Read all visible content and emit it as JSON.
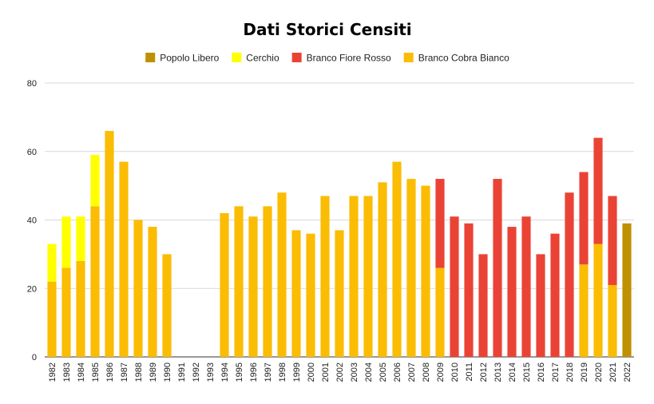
{
  "chart_data": {
    "type": "bar",
    "stacked": true,
    "title": "Dati Storici Censiti",
    "xlabel": "",
    "ylabel": "",
    "ylim": [
      0,
      80
    ],
    "yticks": [
      0,
      20,
      40,
      60,
      80
    ],
    "grid": true,
    "legend_position": "top",
    "categories": [
      "1982",
      "1983",
      "1984",
      "1985",
      "1986",
      "1987",
      "1988",
      "1989",
      "1990",
      "1991",
      "1992",
      "1993",
      "1994",
      "1995",
      "1996",
      "1997",
      "1998",
      "1999",
      "2000",
      "2001",
      "2002",
      "2003",
      "2004",
      "2005",
      "2006",
      "2007",
      "2008",
      "2009",
      "2010",
      "2011",
      "2012",
      "2013",
      "2014",
      "2015",
      "2016",
      "2017",
      "2018",
      "2019",
      "2020",
      "2021",
      "2022"
    ],
    "series": [
      {
        "name": "Branco Cobra Bianco",
        "color": "#fbbc04",
        "values": [
          22,
          26,
          28,
          44,
          66,
          57,
          40,
          38,
          30,
          0,
          0,
          0,
          42,
          44,
          41,
          44,
          48,
          37,
          36,
          47,
          37,
          47,
          47,
          51,
          57,
          52,
          50,
          26,
          0,
          0,
          0,
          0,
          0,
          0,
          0,
          0,
          0,
          27,
          33,
          21,
          0
        ]
      },
      {
        "name": "Cerchio",
        "color": "#ffff00",
        "values": [
          11,
          15,
          13,
          15,
          0,
          0,
          0,
          0,
          0,
          0,
          0,
          0,
          0,
          0,
          0,
          0,
          0,
          0,
          0,
          0,
          0,
          0,
          0,
          0,
          0,
          0,
          0,
          0,
          0,
          0,
          0,
          0,
          0,
          0,
          0,
          0,
          0,
          0,
          0,
          0,
          0
        ]
      },
      {
        "name": "Branco Fiore Rosso",
        "color": "#ea4335",
        "values": [
          0,
          0,
          0,
          0,
          0,
          0,
          0,
          0,
          0,
          0,
          0,
          0,
          0,
          0,
          0,
          0,
          0,
          0,
          0,
          0,
          0,
          0,
          0,
          0,
          0,
          0,
          0,
          26,
          41,
          39,
          30,
          52,
          38,
          41,
          30,
          36,
          48,
          27,
          31,
          26,
          0
        ]
      },
      {
        "name": "Popolo Libero",
        "color": "#bf9000",
        "values": [
          0,
          0,
          0,
          0,
          0,
          0,
          0,
          0,
          0,
          0,
          0,
          0,
          0,
          0,
          0,
          0,
          0,
          0,
          0,
          0,
          0,
          0,
          0,
          0,
          0,
          0,
          0,
          0,
          0,
          0,
          0,
          0,
          0,
          0,
          0,
          0,
          0,
          0,
          0,
          0,
          39
        ]
      }
    ],
    "legend_order": [
      "Popolo Libero",
      "Cerchio",
      "Branco Fiore Rosso",
      "Branco Cobra Bianco"
    ]
  }
}
